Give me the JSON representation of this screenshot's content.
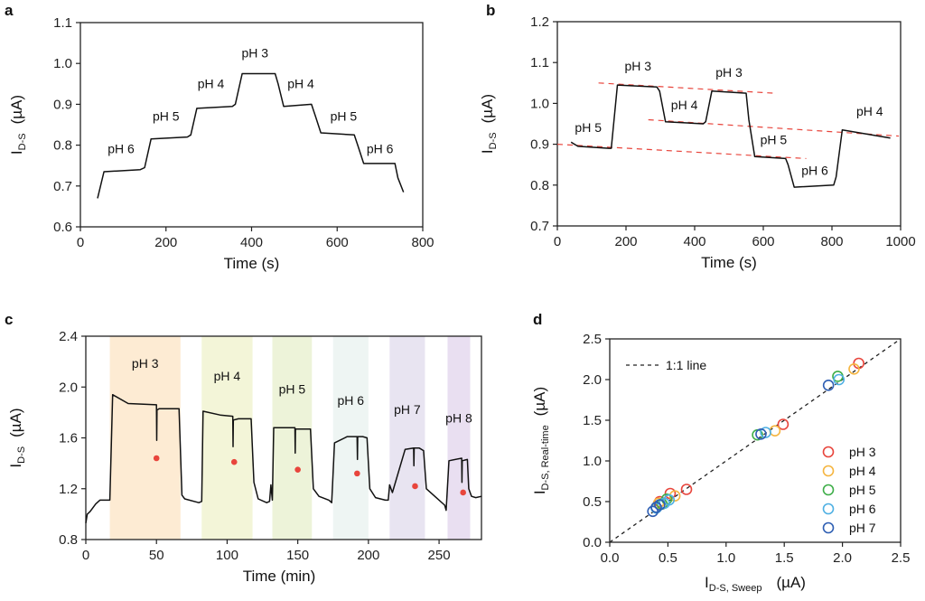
{
  "chart_data": [
    {
      "panel": "a",
      "type": "line",
      "xlabel": "Time   (s)",
      "ylabel_main": "I",
      "ylabel_sub": "D-S",
      "ylabel_unit": "(µA)",
      "xlim": [
        0,
        800
      ],
      "ylim": [
        0.6,
        1.1
      ],
      "xticks": [
        0,
        200,
        400,
        600,
        800
      ],
      "yticks": [
        0.6,
        0.7,
        0.8,
        0.9,
        1.0,
        1.1
      ],
      "ytick_labels": [
        "0.6",
        "0.7",
        "0.8",
        "0.9",
        "1.0",
        "1.1"
      ],
      "series": [
        {
          "name": "I_DS",
          "color": "#111111",
          "x": [
            40,
            55,
            140,
            150,
            165,
            250,
            258,
            272,
            355,
            362,
            378,
            455,
            462,
            475,
            540,
            548,
            562,
            640,
            648,
            662,
            735,
            742,
            755
          ],
          "y": [
            0.67,
            0.735,
            0.74,
            0.745,
            0.815,
            0.82,
            0.825,
            0.89,
            0.895,
            0.9,
            0.975,
            0.975,
            0.95,
            0.895,
            0.9,
            0.875,
            0.83,
            0.825,
            0.8,
            0.755,
            0.755,
            0.72,
            0.685
          ]
        }
      ],
      "annotations": [
        {
          "text": "pH 6",
          "x": 95,
          "y": 0.78
        },
        {
          "text": "pH 5",
          "x": 200,
          "y": 0.86
        },
        {
          "text": "pH 4",
          "x": 305,
          "y": 0.94
        },
        {
          "text": "pH 3",
          "x": 408,
          "y": 1.015
        },
        {
          "text": "pH 4",
          "x": 515,
          "y": 0.94
        },
        {
          "text": "pH 5",
          "x": 615,
          "y": 0.86
        },
        {
          "text": "pH 6",
          "x": 700,
          "y": 0.78
        }
      ]
    },
    {
      "panel": "b",
      "type": "line",
      "xlabel": "Time   (s)",
      "ylabel_main": "I",
      "ylabel_sub": "D-S",
      "ylabel_unit": "(µA)",
      "xlim": [
        0,
        1000
      ],
      "ylim": [
        0.7,
        1.2
      ],
      "xticks": [
        0,
        200,
        400,
        600,
        800,
        1000
      ],
      "yticks": [
        0.7,
        0.8,
        0.9,
        1.0,
        1.1,
        1.2
      ],
      "ytick_labels": [
        "0.7",
        "0.8",
        "0.9",
        "1.0",
        "1.1",
        "1.2"
      ],
      "series": [
        {
          "name": "I_DS",
          "color": "#111111",
          "x": [
            40,
            60,
            150,
            157,
            175,
            290,
            298,
            315,
            425,
            432,
            450,
            550,
            558,
            575,
            665,
            672,
            690,
            805,
            812,
            830,
            970
          ],
          "y": [
            0.905,
            0.895,
            0.89,
            0.89,
            1.045,
            1.04,
            1.03,
            0.955,
            0.95,
            0.955,
            1.03,
            1.025,
            0.96,
            0.87,
            0.865,
            0.85,
            0.795,
            0.8,
            0.82,
            0.935,
            0.915
          ]
        }
      ],
      "trend_lines": [
        {
          "color": "#e8453c",
          "x": [
            120,
            630
          ],
          "y": [
            1.05,
            1.025
          ]
        },
        {
          "color": "#e8453c",
          "x": [
            265,
            995
          ],
          "y": [
            0.96,
            0.92
          ]
        },
        {
          "color": "#e8453c",
          "x": [
            0,
            725
          ],
          "y": [
            0.9,
            0.865
          ]
        }
      ],
      "annotations": [
        {
          "text": "pH 5",
          "x": 90,
          "y": 0.93
        },
        {
          "text": "pH 3",
          "x": 235,
          "y": 1.08
        },
        {
          "text": "pH 4",
          "x": 370,
          "y": 0.985
        },
        {
          "text": "pH 3",
          "x": 500,
          "y": 1.065
        },
        {
          "text": "pH 5",
          "x": 630,
          "y": 0.9
        },
        {
          "text": "pH 6",
          "x": 750,
          "y": 0.825
        },
        {
          "text": "pH 4",
          "x": 910,
          "y": 0.97
        }
      ]
    },
    {
      "panel": "c",
      "type": "line",
      "xlabel": "Time  (min)",
      "ylabel_main": "I",
      "ylabel_sub": "D-S",
      "ylabel_unit": "(µA)",
      "xlim": [
        0,
        280
      ],
      "ylim": [
        0.8,
        2.4
      ],
      "xticks": [
        0,
        50,
        100,
        150,
        200,
        250
      ],
      "yticks": [
        0.8,
        1.2,
        1.6,
        2.0,
        2.4
      ],
      "ytick_labels": [
        "0.8",
        "1.2",
        "1.6",
        "2.0",
        "2.4"
      ],
      "bands": [
        {
          "label": "pH 3",
          "x0": 17,
          "x1": 67,
          "color": "#fdebd3",
          "label_y": 2.15
        },
        {
          "label": "pH 4",
          "x0": 82,
          "x1": 118,
          "color": "#f3f5d8",
          "label_y": 2.05
        },
        {
          "label": "pH 5",
          "x0": 132,
          "x1": 160,
          "color": "#edf3d9",
          "label_y": 1.95
        },
        {
          "label": "pH 6",
          "x0": 175,
          "x1": 200,
          "color": "#eef5f3",
          "label_y": 1.86
        },
        {
          "label": "pH 7",
          "x0": 215,
          "x1": 240,
          "color": "#e8e4f1",
          "label_y": 1.79
        },
        {
          "label": "pH 8",
          "x0": 256,
          "x1": 272,
          "color": "#e9dff1",
          "label_y": 1.72
        }
      ],
      "series": [
        {
          "name": "I_DS",
          "color": "#111111",
          "x": [
            0,
            1,
            3,
            7,
            10,
            17,
            19,
            30,
            50,
            50.2,
            50.4,
            52,
            66,
            68,
            70,
            80,
            82,
            83,
            95,
            104,
            104.2,
            104.4,
            108,
            117,
            119,
            122,
            128,
            130,
            131,
            132,
            133,
            148,
            148.2,
            148.4,
            152,
            159,
            161,
            165,
            172,
            174,
            176,
            185,
            192,
            192.2,
            192.4,
            196,
            199,
            201,
            205,
            212,
            214,
            215,
            217,
            226,
            232,
            232.2,
            232.4,
            236,
            239,
            241,
            248,
            254,
            255,
            257,
            266,
            266.2,
            266.4,
            270,
            271,
            273,
            276,
            280
          ],
          "y": [
            0.93,
            1.0,
            1.02,
            1.08,
            1.11,
            1.11,
            1.94,
            1.87,
            1.86,
            1.58,
            1.82,
            1.83,
            1.83,
            1.15,
            1.12,
            1.09,
            1.1,
            1.81,
            1.78,
            1.77,
            1.53,
            1.74,
            1.75,
            1.75,
            1.25,
            1.12,
            1.09,
            1.1,
            1.23,
            1.11,
            1.68,
            1.68,
            1.48,
            1.67,
            1.67,
            1.67,
            1.2,
            1.14,
            1.11,
            1.09,
            1.56,
            1.61,
            1.61,
            1.43,
            1.61,
            1.61,
            1.6,
            1.2,
            1.13,
            1.11,
            1.11,
            1.23,
            1.17,
            1.51,
            1.52,
            1.38,
            1.52,
            1.52,
            1.5,
            1.2,
            1.13,
            1.07,
            1.03,
            1.42,
            1.44,
            1.25,
            1.42,
            1.43,
            1.2,
            1.14,
            1.13,
            1.14
          ]
        }
      ],
      "points": {
        "color": "#e8453c",
        "x": [
          50,
          105,
          150,
          192,
          233,
          267
        ],
        "y": [
          1.44,
          1.41,
          1.35,
          1.32,
          1.22,
          1.17
        ]
      }
    },
    {
      "panel": "d",
      "type": "scatter",
      "xlabel_main": "I",
      "xlabel_sub": "D-S, Sweep",
      "xlabel_unit": "(µA)",
      "ylabel_main": "I",
      "ylabel_sub": "D-S, Real-time",
      "ylabel_unit": "(µA)",
      "xlim": [
        0,
        2.5
      ],
      "ylim": [
        0,
        2.5
      ],
      "xticks": [
        0,
        0.5,
        1.0,
        1.5,
        2.0,
        2.5
      ],
      "xtick_labels": [
        "0.0",
        "0.5",
        "1.0",
        "1.5",
        "2.0",
        "2.5"
      ],
      "yticks": [
        0,
        0.5,
        1.0,
        1.5,
        2.0,
        2.5
      ],
      "ytick_labels": [
        "0.0",
        "0.5",
        "1.0",
        "1.5",
        "2.0",
        "2.5"
      ],
      "reference_line": {
        "label": "1:1 line",
        "x": [
          0,
          2.5
        ],
        "y": [
          0,
          2.5
        ],
        "legend": "top-left"
      },
      "legend_position": "bottom-right",
      "series": [
        {
          "name": "pH 3",
          "color": "#e8453c",
          "x": [
            0.43,
            0.52,
            0.66,
            1.49,
            2.14
          ],
          "y": [
            0.5,
            0.6,
            0.65,
            1.45,
            2.2
          ]
        },
        {
          "name": "pH 4",
          "color": "#f5b540",
          "x": [
            0.42,
            0.56,
            1.42,
            2.1
          ],
          "y": [
            0.48,
            0.57,
            1.37,
            2.13
          ]
        },
        {
          "name": "pH 5",
          "color": "#3fae49",
          "x": [
            0.45,
            0.49,
            1.27,
            1.96
          ],
          "y": [
            0.47,
            0.53,
            1.32,
            2.04
          ]
        },
        {
          "name": "pH 6",
          "color": "#4fb0e3",
          "x": [
            0.4,
            0.47,
            0.51,
            1.34,
            1.97
          ],
          "y": [
            0.42,
            0.48,
            0.52,
            1.35,
            2.0
          ]
        },
        {
          "name": "pH 7",
          "color": "#2f5fb3",
          "x": [
            0.37,
            0.4,
            0.43,
            1.3,
            1.88
          ],
          "y": [
            0.38,
            0.43,
            0.46,
            1.33,
            1.93
          ]
        }
      ]
    }
  ],
  "panel_labels": [
    "a",
    "b",
    "c",
    "d"
  ]
}
